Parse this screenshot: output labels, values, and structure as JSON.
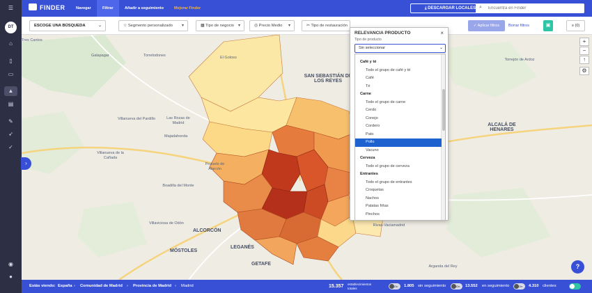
{
  "app": {
    "name": "FINDER",
    "user_initials": "DT"
  },
  "topbar": {
    "nav": [
      "Navegar",
      "Filtrar",
      "Añadir a seguimiento",
      "Mejorar Finder"
    ],
    "download_label": "DESCARGAR LOCALES",
    "search_placeholder": "Encuentra en Finder"
  },
  "filters": {
    "search_select": "ESCOGE UNA BÚSQUEDA",
    "segment": "Segmento personalizado",
    "business_type": "Tipo de negocio",
    "avg_price": "Precio Medio",
    "restaurant_type": "Tipo de restauración",
    "apply": "Aplicar filtros",
    "clear": "Borrar filtros",
    "cart": "(0)"
  },
  "panel": {
    "title": "RELEVANCIA PRODUCTO",
    "subtitle": "Tipo de producto",
    "selected_value": "Sin seleccionar",
    "options": [
      {
        "label": "Café y té",
        "group": true
      },
      {
        "label": "Todo el grupo de café y té",
        "group": false
      },
      {
        "label": "Café",
        "group": false
      },
      {
        "label": "Té",
        "group": false
      },
      {
        "label": "Carne",
        "group": true
      },
      {
        "label": "Todo el grupo de carne",
        "group": false
      },
      {
        "label": "Cerdo",
        "group": false
      },
      {
        "label": "Conejo",
        "group": false
      },
      {
        "label": "Cordero",
        "group": false
      },
      {
        "label": "Pato",
        "group": false
      },
      {
        "label": "Pollo",
        "group": false,
        "highlighted": true
      },
      {
        "label": "Vacuno",
        "group": false
      },
      {
        "label": "Cerveza",
        "group": true
      },
      {
        "label": "Todo el grupo de cerveza",
        "group": false
      },
      {
        "label": "Entrantes",
        "group": true
      },
      {
        "label": "Todo el grupo de entrantes",
        "group": false
      },
      {
        "label": "Croquetas",
        "group": false
      },
      {
        "label": "Nachos",
        "group": false
      },
      {
        "label": "Patatas fritas",
        "group": false
      },
      {
        "label": "Pinchos",
        "group": false
      }
    ]
  },
  "map": {
    "places": [
      {
        "text": "Tres Cantos",
        "big": false
      },
      {
        "text": "Torrelodones",
        "big": false
      },
      {
        "text": "Galapagar",
        "big": false
      },
      {
        "text": "El Goloso",
        "big": false
      },
      {
        "text": "SAN SEBASTIÁN DE LOS REYES",
        "big": true
      },
      {
        "text": "Villanueva del Pardillo",
        "big": false
      },
      {
        "text": "Las Rozas de Madrid",
        "big": false
      },
      {
        "text": "Majadahonda",
        "big": false
      },
      {
        "text": "Pozuelo de Alarcón",
        "big": false
      },
      {
        "text": "Villanueva de la Cañada",
        "big": false
      },
      {
        "text": "Boadilla del Monte",
        "big": false
      },
      {
        "text": "Villaviciosa de Odón",
        "big": false
      },
      {
        "text": "ALCORCÓN",
        "big": true
      },
      {
        "text": "MÓSTOLES",
        "big": true
      },
      {
        "text": "LEGANÉS",
        "big": true
      },
      {
        "text": "GETAFE",
        "big": true
      },
      {
        "text": "ALCALÁ DE HENARES",
        "big": true
      },
      {
        "text": "Torrejón de Ardoz",
        "big": false
      },
      {
        "text": "Rivas-Vaciamadrid",
        "big": false
      },
      {
        "text": "Arganda del Rey",
        "big": false
      }
    ]
  },
  "bottombar": {
    "viewing_label": "Estás viendo:",
    "breadcrumb": [
      "España",
      "Comunidad de Madrid",
      "Provincia de Madrid",
      "Madrid"
    ],
    "total_count": "15.357",
    "total_label": "establecimientos totales",
    "toggle_label": "On",
    "stats": [
      {
        "value": "1.805",
        "label": "sin seguimiento"
      },
      {
        "value": "13.552",
        "label": "en seguimiento"
      },
      {
        "value": "4.310",
        "label": "clientes"
      }
    ]
  }
}
